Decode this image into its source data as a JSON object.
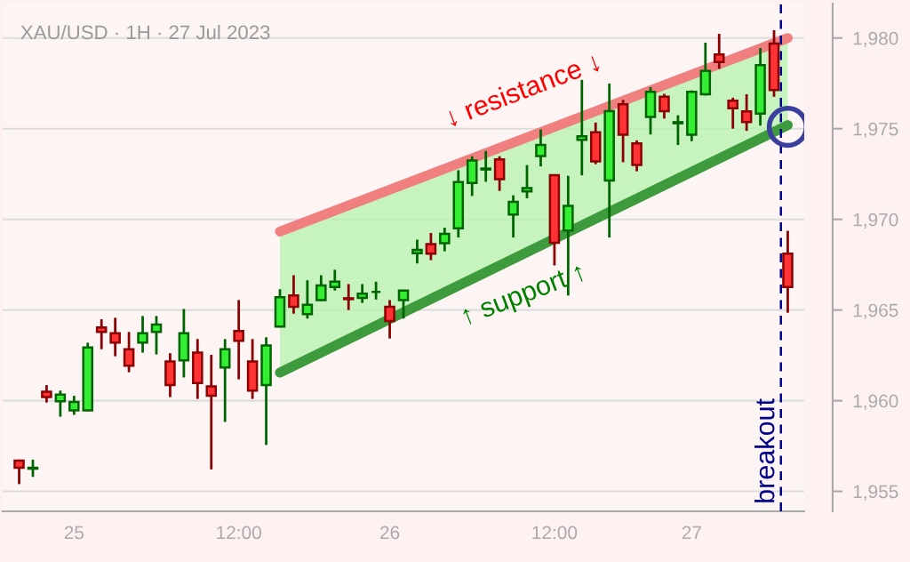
{
  "chart_data": {
    "type": "candlestick",
    "title": "XAU/USD · 1H · 27 Jul 2023",
    "categories": [
      null,
      null,
      null,
      null,
      "25",
      null,
      null,
      null,
      null,
      null,
      null,
      null,
      null,
      null,
      null,
      null,
      "12:00",
      null,
      null,
      null,
      null,
      null,
      null,
      null,
      null,
      null,
      null,
      "26",
      null,
      null,
      null,
      null,
      null,
      null,
      null,
      null,
      null,
      null,
      null,
      "12:00",
      null,
      null,
      null,
      null,
      null,
      null,
      null,
      null,
      null,
      "27",
      null,
      null,
      null,
      null,
      null,
      null,
      null
    ],
    "ohlc": [
      [
        1956.7,
        1956.75,
        1955.4,
        1956.3
      ],
      [
        1956.25,
        1956.75,
        1955.8,
        1956.3
      ],
      [
        1960.5,
        1960.86,
        1959.9,
        1960.2
      ],
      [
        1959.97,
        1960.56,
        1959.12,
        1960.33
      ],
      [
        1959.47,
        1960.27,
        1959.22,
        1959.93
      ],
      [
        1959.47,
        1963.2,
        1959.42,
        1962.94
      ],
      [
        1964.04,
        1964.49,
        1962.84,
        1963.79
      ],
      [
        1963.72,
        1964.57,
        1962.45,
        1963.2
      ],
      [
        1962.84,
        1963.79,
        1961.57,
        1961.93
      ],
      [
        1963.2,
        1964.67,
        1962.65,
        1963.72
      ],
      [
        1963.79,
        1964.67,
        1962.55,
        1964.2
      ],
      [
        1962.16,
        1962.62,
        1960.2,
        1960.86
      ],
      [
        1962.23,
        1965.06,
        1961.28,
        1963.72
      ],
      [
        1962.65,
        1963.4,
        1960.1,
        1960.97
      ],
      [
        1960.79,
        1962.53,
        1956.21,
        1960.27
      ],
      [
        1961.83,
        1963.4,
        1958.83,
        1962.84
      ],
      [
        1963.84,
        1965.55,
        1961.18,
        1963.3
      ],
      [
        1962.16,
        1963.4,
        1960.1,
        1960.56
      ],
      [
        1960.86,
        1963.5,
        1957.56,
        1963.04
      ],
      [
        1964.09,
        1966.15,
        1964.04,
        1965.7
      ],
      [
        1965.8,
        1966.92,
        1964.8,
        1965.18
      ],
      [
        1964.77,
        1966.64,
        1964.53,
        1965.29
      ],
      [
        1965.55,
        1966.92,
        1965.5,
        1966.36
      ],
      [
        1966.27,
        1967.22,
        1966.07,
        1966.56
      ],
      [
        1965.65,
        1966.43,
        1965.0,
        1965.6
      ],
      [
        1965.67,
        1966.43,
        1965.39,
        1965.9
      ],
      [
        1966.0,
        1966.56,
        1965.58,
        1966.0
      ],
      [
        1965.18,
        1965.55,
        1963.43,
        1964.39
      ],
      [
        1965.55,
        1966.1,
        1964.53,
        1966.07
      ],
      [
        1968.13,
        1968.88,
        1967.57,
        1968.32
      ],
      [
        1968.63,
        1969.25,
        1967.75,
        1968.11
      ],
      [
        1968.68,
        1969.54,
        1968.24,
        1969.2
      ],
      [
        1969.5,
        1972.71,
        1969.0,
        1972.06
      ],
      [
        1972.01,
        1973.48,
        1971.29,
        1973.25
      ],
      [
        1972.75,
        1973.77,
        1972.07,
        1972.8
      ],
      [
        1973.31,
        1973.48,
        1971.57,
        1972.22
      ],
      [
        1970.26,
        1971.33,
        1969.0,
        1970.96
      ],
      [
        1971.54,
        1972.99,
        1971.16,
        1971.73
      ],
      [
        1973.49,
        1974.96,
        1972.92,
        1974.1
      ],
      [
        1972.43,
        1972.43,
        1967.46,
        1968.71
      ],
      [
        1969.38,
        1972.4,
        1965.8,
        1970.75
      ],
      [
        1974.39,
        1977.69,
        1972.43,
        1974.58
      ],
      [
        1974.8,
        1975.34,
        1973.04,
        1973.2
      ],
      [
        1972.14,
        1977.49,
        1969.0,
        1975.97
      ],
      [
        1976.35,
        1976.59,
        1973.15,
        1974.67
      ],
      [
        1974.19,
        1974.36,
        1972.65,
        1973.0
      ],
      [
        1975.65,
        1977.29,
        1974.68,
        1977.03
      ],
      [
        1976.76,
        1976.92,
        1975.56,
        1975.97
      ],
      [
        1975.3,
        1975.74,
        1974.1,
        1975.36
      ],
      [
        1974.67,
        1977.11,
        1974.31,
        1977.03
      ],
      [
        1976.9,
        1979.74,
        1976.83,
        1978.19
      ],
      [
        1979.09,
        1980.23,
        1978.3,
        1978.68
      ],
      [
        1976.54,
        1976.71,
        1975.0,
        1976.13
      ],
      [
        1975.95,
        1976.9,
        1974.88,
        1975.37
      ],
      [
        1975.83,
        1979.45,
        1975.17,
        1978.5
      ],
      [
        1979.69,
        1980.43,
        1976.76,
        1977.13
      ],
      [
        1968.11,
        1969.37,
        1964.85,
        1966.27
      ]
    ],
    "series": [
      {
        "type": "line",
        "values": [
          null,
          null,
          null,
          null,
          null,
          null,
          null,
          null,
          null,
          null,
          null,
          null,
          null,
          null,
          null,
          null,
          null,
          null,
          null,
          1969.33,
          null,
          null,
          null,
          null,
          null,
          null,
          null,
          null,
          null,
          null,
          null,
          null,
          null,
          null,
          null,
          null,
          null,
          null,
          null,
          null,
          null,
          null,
          null,
          null,
          null,
          null,
          null,
          null,
          null,
          null,
          null,
          null,
          null,
          null,
          null,
          null,
          1980.0
        ],
        "color": "#f08080"
      },
      {
        "type": "line",
        "values": [
          null,
          null,
          null,
          null,
          null,
          null,
          null,
          null,
          null,
          null,
          null,
          null,
          null,
          null,
          null,
          null,
          null,
          null,
          null,
          1961.55,
          null,
          null,
          null,
          null,
          null,
          null,
          null,
          null,
          null,
          null,
          null,
          null,
          null,
          null,
          null,
          null,
          null,
          null,
          null,
          null,
          null,
          null,
          null,
          null,
          null,
          null,
          null,
          null,
          null,
          null,
          null,
          null,
          null,
          null,
          null,
          null,
          1975.2
        ],
        "color": "#3d9a3d"
      },
      {
        "type": "scatter",
        "values": [
          null,
          null,
          null,
          null,
          null,
          null,
          null,
          null,
          null,
          null,
          null,
          null,
          null,
          null,
          null,
          null,
          null,
          null,
          null,
          null,
          null,
          null,
          null,
          null,
          null,
          null,
          null,
          null,
          null,
          null,
          null,
          null,
          null,
          null,
          null,
          null,
          null,
          null,
          null,
          null,
          null,
          null,
          null,
          null,
          null,
          null,
          null,
          null,
          null,
          null,
          null,
          null,
          null,
          null,
          null,
          null,
          1975.1
        ],
        "color": "#3a3f9e",
        "marker": "circle"
      }
    ],
    "annotations": [
      "↓ resistance ↓",
      "↑ support ↑",
      "breakout"
    ],
    "ylim": [
      1953.9,
      1981.9
    ],
    "yticks": [
      {
        "value": 1955,
        "label": "1,955"
      },
      {
        "value": 1960,
        "label": "1,960"
      },
      {
        "value": 1965,
        "label": "1,965"
      },
      {
        "value": 1970,
        "label": "1,970"
      },
      {
        "value": 1975,
        "label": "1,975"
      },
      {
        "value": 1980,
        "label": "1,980"
      }
    ],
    "grid": "y",
    "legend": false
  }
}
